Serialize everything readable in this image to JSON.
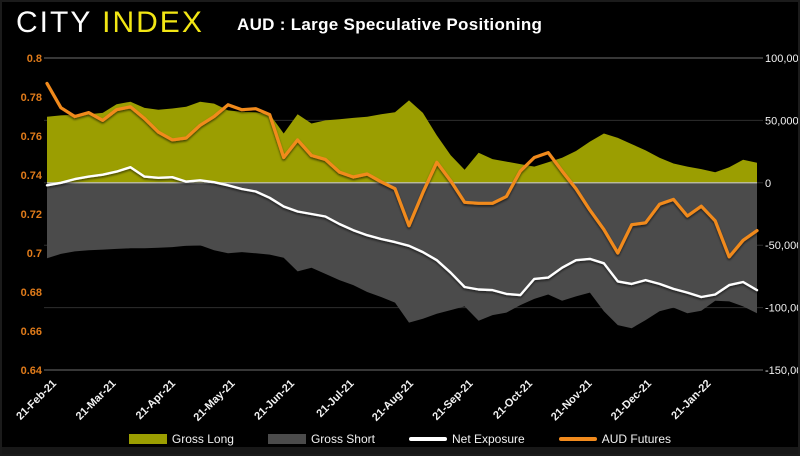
{
  "header": {
    "logo_word1": "CITY",
    "logo_word2": "INDEX",
    "title": "AUD : Large Speculative Positioning"
  },
  "colors": {
    "background": "#000000",
    "gross_long": "#9b9e01",
    "gross_short": "#4b4b4b",
    "net_exposure": "#ffffff",
    "aud_futures": "#f18a1d",
    "left_axis_labels": "#e07b1a",
    "right_axis_labels": "#f2f2f2",
    "x_axis_labels": "#f2f2f2",
    "grid_minor": "#2e2e2e",
    "grid_frame": "#6e6e6e",
    "zero_line": "#c6c6c6",
    "logo_yellow": "#f2e614"
  },
  "chart_data": {
    "type": "area",
    "title": "AUD : Large Speculative Positioning",
    "grid": "horizontal only",
    "legend_position": "bottom center",
    "x_axis": {
      "tick_labels": [
        "21-Feb-21",
        "21-Mar-21",
        "21-Apr-21",
        "21-May-21",
        "21-Jun-21",
        "21-Jul-21",
        "21-Aug-21",
        "21-Sep-21",
        "21-Oct-21",
        "21-Nov-21",
        "21-Dec-21",
        "21-Jan-22"
      ]
    },
    "left_axis": {
      "ticks": [
        "0.8",
        "0.78",
        "0.76",
        "0.74",
        "0.72",
        "0.7",
        "0.68",
        "0.66",
        "0.64"
      ],
      "tick_values": [
        0.8,
        0.78,
        0.76,
        0.74,
        0.72,
        0.7,
        0.68,
        0.66,
        0.64
      ],
      "min": 0.64,
      "max": 0.8
    },
    "right_axis": {
      "ticks": [
        "100,000",
        "50,000",
        "0",
        "-50,000",
        "-100,000",
        "-150,000"
      ],
      "tick_values": [
        100000,
        50000,
        0,
        -50000,
        -100000,
        -150000
      ],
      "min": -150000,
      "max": 100000
    },
    "series": [
      {
        "name": "Gross Long",
        "render": "area",
        "axis": "right",
        "color": "#9b9e01",
        "values": [
          53000,
          54000,
          54500,
          55000,
          56000,
          63000,
          65000,
          60000,
          58500,
          59500,
          61000,
          65000,
          63500,
          58000,
          57000,
          56500,
          55000,
          39500,
          55000,
          47500,
          50000,
          51000,
          52000,
          53000,
          55000,
          56500,
          66000,
          56000,
          38000,
          22000,
          10500,
          24000,
          19000,
          17000,
          15000,
          13000,
          16500,
          20000,
          25500,
          33000,
          39500,
          36000,
          31000,
          26000,
          20000,
          15500,
          13000,
          11000,
          8500,
          12500,
          18500,
          16000
        ]
      },
      {
        "name": "Gross Short",
        "render": "area",
        "axis": "right",
        "color": "#4b4b4b",
        "values": [
          -60500,
          -57000,
          -55000,
          -54000,
          -53500,
          -53000,
          -52500,
          -52500,
          -52000,
          -51500,
          -50500,
          -50000,
          -54000,
          -56500,
          -55500,
          -56500,
          -57500,
          -60000,
          -71000,
          -68000,
          -73000,
          -78000,
          -82000,
          -87500,
          -91500,
          -96000,
          -112000,
          -109000,
          -105000,
          -102000,
          -99000,
          -110500,
          -106000,
          -104000,
          -98000,
          -93000,
          -89500,
          -94500,
          -91000,
          -88000,
          -103000,
          -114000,
          -116500,
          -110000,
          -103000,
          -100000,
          -104500,
          -102500,
          -94500,
          -95000,
          -99000,
          -104500
        ]
      },
      {
        "name": "Net Exposure",
        "render": "line",
        "axis": "right",
        "color": "#ffffff",
        "width": 2.4,
        "values": [
          -2000,
          0,
          3000,
          5000,
          6500,
          9000,
          12500,
          5000,
          4000,
          4500,
          1000,
          2000,
          500,
          -2000,
          -5000,
          -7000,
          -12000,
          -19000,
          -23000,
          -25000,
          -27000,
          -33000,
          -38000,
          -42000,
          -45000,
          -47500,
          -50500,
          -55500,
          -62000,
          -72000,
          -83500,
          -85500,
          -86000,
          -89000,
          -90000,
          -77000,
          -76000,
          -68000,
          -62000,
          -61000,
          -64500,
          -79000,
          -81000,
          -78000,
          -81000,
          -85000,
          -88000,
          -91500,
          -89500,
          -82000,
          -79500,
          -86000
        ]
      },
      {
        "name": "AUD Futures",
        "render": "line",
        "axis": "left",
        "color": "#f18a1d",
        "width": 3.2,
        "values": [
          0.787,
          0.7745,
          0.77,
          0.772,
          0.768,
          0.7735,
          0.775,
          0.769,
          0.762,
          0.758,
          0.759,
          0.7655,
          0.77,
          0.776,
          0.7735,
          0.774,
          0.771,
          0.749,
          0.758,
          0.75,
          0.748,
          0.7415,
          0.739,
          0.7405,
          0.7365,
          0.733,
          0.714,
          0.731,
          0.7465,
          0.737,
          0.726,
          0.7255,
          0.7255,
          0.729,
          0.742,
          0.749,
          0.7515,
          0.742,
          0.733,
          0.722,
          0.712,
          0.7,
          0.7145,
          0.7155,
          0.725,
          0.7275,
          0.719,
          0.724,
          0.7165,
          0.698,
          0.7065,
          0.7115
        ]
      }
    ]
  },
  "legend": {
    "items": [
      {
        "label": "Gross Long",
        "swatch": "area",
        "color": "#9b9e01"
      },
      {
        "label": "Gross Short",
        "swatch": "area",
        "color": "#4b4b4b"
      },
      {
        "label": "Net Exposure",
        "swatch": "line",
        "color": "#ffffff"
      },
      {
        "label": "AUD Futures",
        "swatch": "line",
        "color": "#f18a1d"
      }
    ]
  }
}
